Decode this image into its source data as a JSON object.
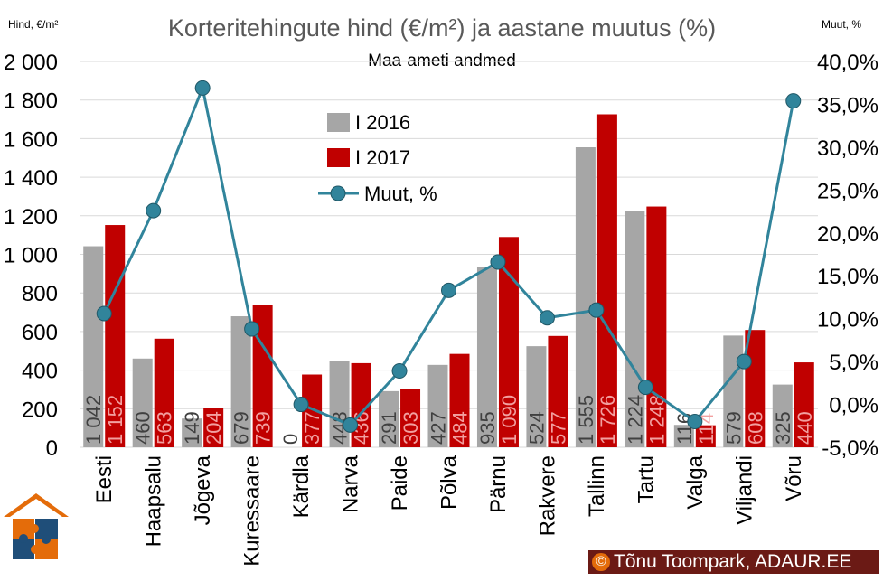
{
  "chart_data": {
    "type": "bar",
    "title": "Korteritehingute hind (€/m²) ja aastane muutus (%)",
    "subtitle": "Maa-ameti andmed",
    "ylabel": "Hind, €/m²",
    "y2label": "Muut, %",
    "ylim": [
      0,
      2000
    ],
    "y2lim": [
      -5,
      40
    ],
    "yticks": [
      "0",
      "200",
      "400",
      "600",
      "800",
      "1 000",
      "1 200",
      "1 400",
      "1 600",
      "1 800",
      "2 000"
    ],
    "y2ticks": [
      "-5,0%",
      "0,0%",
      "5,0%",
      "10,0%",
      "15,0%",
      "20,0%",
      "25,0%",
      "30,0%",
      "35,0%",
      "40,0%"
    ],
    "categories": [
      "Eesti",
      "Haapsalu",
      "Jõgeva",
      "Kuressaare",
      "Kärdla",
      "Narva",
      "Paide",
      "Põlva",
      "Pärnu",
      "Rakvere",
      "Tallinn",
      "Tartu",
      "Valga",
      "Viljandi",
      "Võru"
    ],
    "series": [
      {
        "name": "I 2016",
        "color": "#a6a6a6",
        "values": [
          1042,
          460,
          149,
          679,
          0,
          448,
          291,
          427,
          935,
          524,
          1555,
          1224,
          116,
          579,
          325
        ],
        "labels": [
          "1 042",
          "460",
          "149",
          "679",
          "0",
          "448",
          "291",
          "427",
          "935",
          "524",
          "1 555",
          "1 224",
          "116",
          "579",
          "325"
        ]
      },
      {
        "name": "I 2017",
        "color": "#c00000",
        "values": [
          1152,
          563,
          204,
          739,
          377,
          436,
          303,
          484,
          1090,
          577,
          1726,
          1248,
          114,
          608,
          440
        ],
        "labels": [
          "1 152",
          "563",
          "204",
          "739",
          "377",
          "436",
          "303",
          "484",
          "1 090",
          "577",
          "1 726",
          "1 248",
          "114",
          "608",
          "440"
        ]
      },
      {
        "name": "Muut, %",
        "type": "line",
        "axis": "right",
        "color": "#31849b",
        "values": [
          10.6,
          22.6,
          36.9,
          8.8,
          0.0,
          -2.4,
          3.9,
          13.3,
          16.6,
          10.1,
          11.0,
          2.0,
          -2.0,
          5.0,
          35.4
        ]
      }
    ],
    "legend": "top-center",
    "grid": true
  },
  "credit": {
    "symbol": "©",
    "text": "Tõnu Toompark, ADAUR.EE"
  },
  "colors": {
    "grid": "#d9d9d9",
    "text": "#595959",
    "credit_bg": "#6b1a15",
    "logo_orange": "#e46c0a",
    "logo_blue": "#1f4e79"
  }
}
